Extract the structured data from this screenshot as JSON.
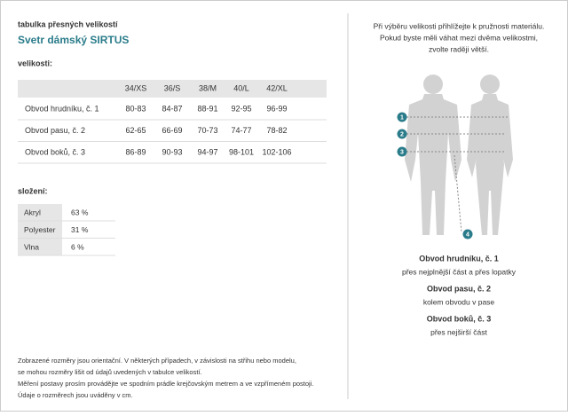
{
  "header": {
    "subtitle": "tabulka přesných velikostí",
    "title": "Svetr dámský SIRTUS"
  },
  "sizes": {
    "heading": "velikosti:",
    "columns": [
      "34/XS",
      "36/S",
      "38/M",
      "40/L",
      "42/XL"
    ],
    "rows": [
      [
        "Obvod hrudníku, č. 1",
        "80-83",
        "84-87",
        "88-91",
        "92-95",
        "96-99"
      ],
      [
        "Obvod pasu, č. 2",
        "62-65",
        "66-69",
        "70-73",
        "74-77",
        "78-82"
      ],
      [
        "Obvod boků, č. 3",
        "86-89",
        "90-93",
        "94-97",
        "98-101",
        "102-106"
      ]
    ]
  },
  "composition": {
    "heading": "složení:",
    "rows": [
      [
        "Akryl",
        "63 %"
      ],
      [
        "Polyester",
        "31 %"
      ],
      [
        "Vlna",
        "6 %"
      ]
    ]
  },
  "footer": [
    "Zobrazené rozměry jsou orientační. V některých případech, v závislosti na střihu nebo modelu,",
    "se mohou rozměry lišit od údajů uvedených v tabulce velikostí.",
    "Měření postavy prosím provádějte ve spodním prádle krejčovským metrem a ve vzpřímeném postoji.",
    "Údaje o rozměrech jsou uváděny v cm."
  ],
  "intro": [
    "Při výběru velikosti přihlížejte k pružnosti materiálu.",
    "Pokud byste měli váhat mezi dvěma velikostmi,",
    "zvolte raději větší."
  ],
  "markers": [
    "1",
    "2",
    "3",
    "4"
  ],
  "measurements": [
    {
      "title": "Obvod hrudníku, č. 1",
      "description": "přes nejplnější část a přes lopatky"
    },
    {
      "title": "Obvod pasu, č. 2",
      "description": "kolem obvodu v pase"
    },
    {
      "title": "Obvod boků, č. 3",
      "description": "přes nejširší část"
    }
  ]
}
